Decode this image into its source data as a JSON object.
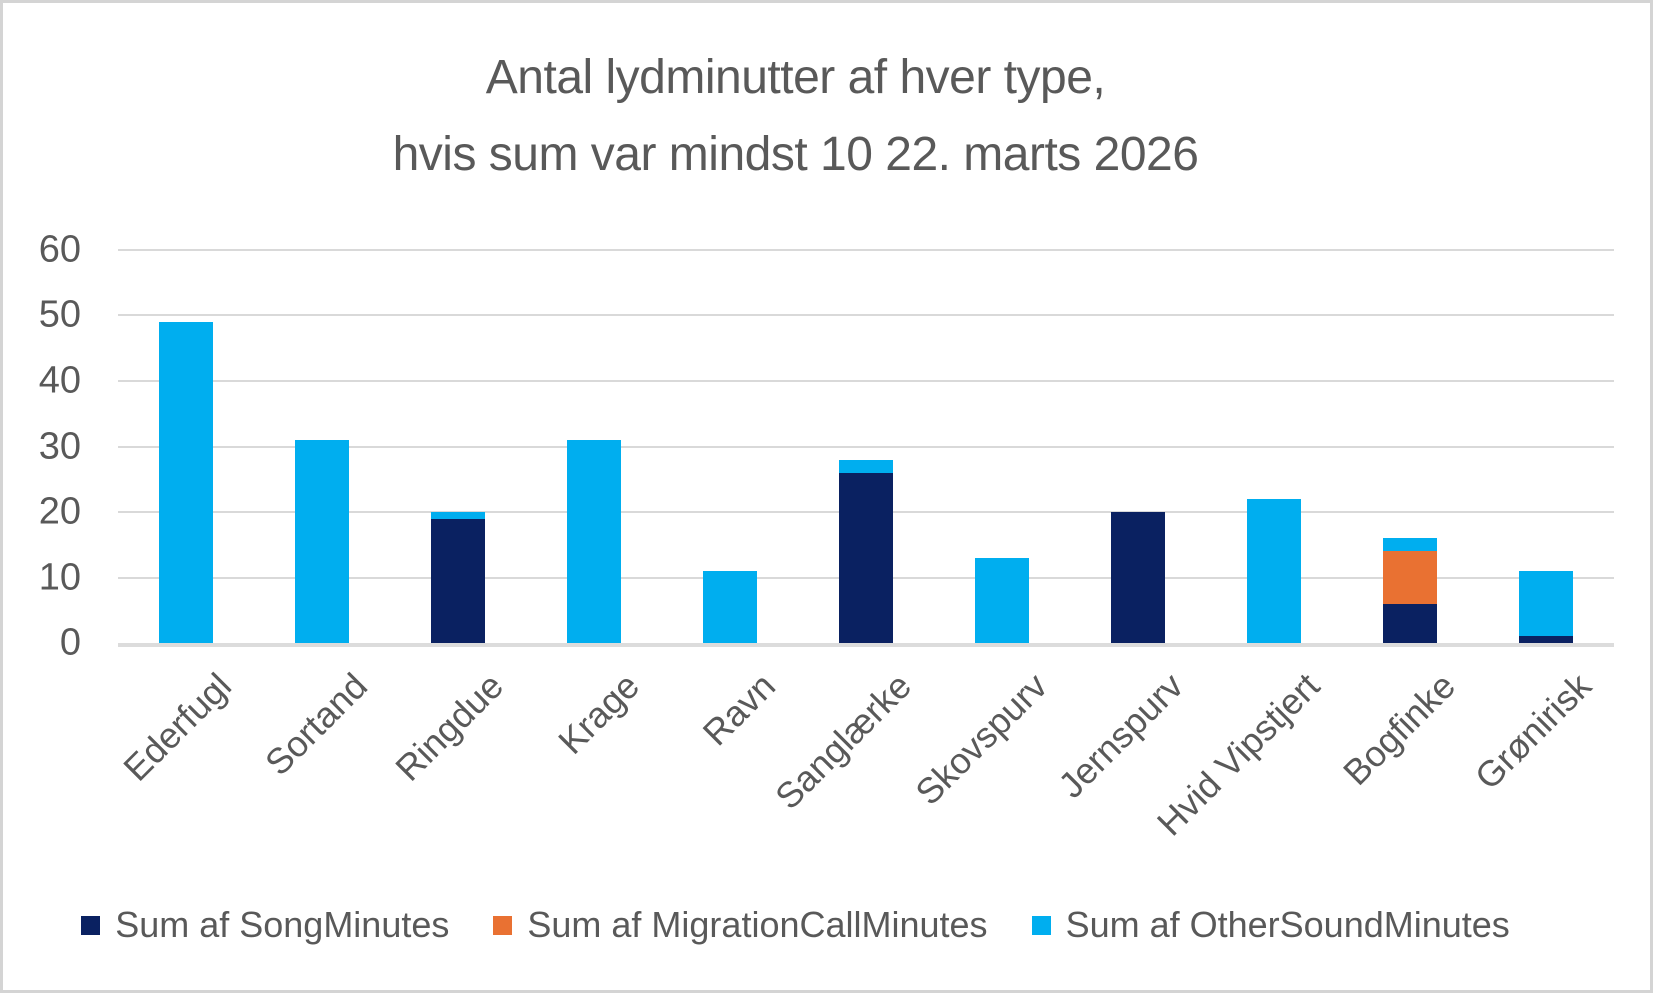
{
  "styles": {
    "text_color": "#595959",
    "grid_color": "#d9d9d9",
    "axis_line_color": "#dcdcdc",
    "background": "#ffffff",
    "border_color": "#d4d4d4",
    "song_color": "#0a2161",
    "migration_color": "#e97132",
    "other_color": "#00aeef"
  },
  "chart_data": {
    "type": "bar",
    "stacked": true,
    "title_lines": [
      "Antal lydminutter af hver type,",
      "hvis sum var mindst 10 22. marts 2026"
    ],
    "title": "Antal lydminutter af hver type, hvis sum var mindst 10 22. marts 2026",
    "categories": [
      "Ederfugl",
      "Sortand",
      "Ringdue",
      "Krage",
      "Ravn",
      "Sanglærke",
      "Skovspurv",
      "Jernspurv",
      "Hvid Vipstjert",
      "Bogfinke",
      "Grønirisk"
    ],
    "series": [
      {
        "name": "Sum af SongMinutes",
        "color": "#0a2161",
        "values": [
          0,
          0,
          19,
          0,
          0,
          26,
          0,
          20,
          0,
          6,
          1
        ]
      },
      {
        "name": "Sum af MigrationCallMinutes",
        "color": "#e97132",
        "values": [
          0,
          0,
          0,
          0,
          0,
          0,
          0,
          0,
          0,
          8,
          0
        ]
      },
      {
        "name": "Sum af OtherSoundMinutes",
        "color": "#00aeef",
        "values": [
          49,
          31,
          1,
          31,
          11,
          2,
          13,
          0,
          22,
          2,
          10
        ]
      }
    ],
    "xlabel": "",
    "ylabel": "",
    "ylim": [
      0,
      60
    ],
    "yticks": [
      0,
      10,
      20,
      30,
      40,
      50,
      60
    ],
    "grid": true,
    "legend_position": "bottom"
  }
}
